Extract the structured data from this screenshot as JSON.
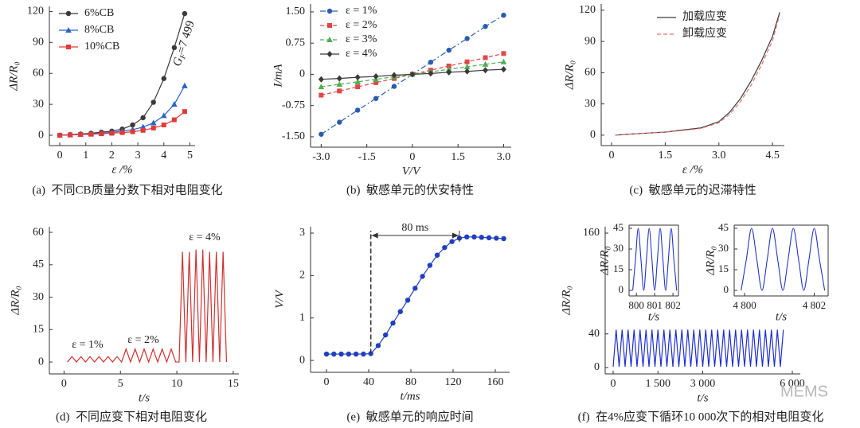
{
  "chart_data": [
    {
      "type": "line",
      "caption": "(a)  不同CB质量分数下相对电阻变化",
      "x_label": "ε /%",
      "y_label": "ΔR/R₀",
      "annotation": {
        "symbol": "G",
        "subscript": "F",
        "text": "=7 499"
      },
      "legend": "upper left",
      "x": [
        0,
        0.4,
        0.8,
        1.2,
        1.6,
        2.0,
        2.4,
        2.8,
        3.2,
        3.6,
        4.0,
        4.4,
        4.8
      ],
      "series": [
        {
          "name": "6%CB",
          "color": "#3a3a3a",
          "marker": "circle",
          "line_style": "solid",
          "values": [
            0,
            0.6,
            1.2,
            2,
            3,
            4,
            6,
            10,
            17,
            32,
            55,
            85,
            118
          ]
        },
        {
          "name": "8%CB",
          "color": "#2a62c8",
          "marker": "triangle",
          "line_style": "solid",
          "values": [
            0,
            0.4,
            0.9,
            1.4,
            2,
            2.8,
            4,
            5.5,
            8,
            12,
            19,
            30,
            48
          ]
        },
        {
          "name": "10%CB",
          "color": "#e03a3a",
          "marker": "square",
          "line_style": "solid",
          "values": [
            0,
            0.3,
            0.7,
            1,
            1.5,
            2,
            2.6,
            3.4,
            4.8,
            7,
            10,
            15,
            23
          ]
        }
      ],
      "xlim": [
        -0.4,
        5.2
      ],
      "ylim": [
        -10,
        125
      ],
      "xticks": [
        0,
        1,
        2,
        3,
        4,
        5
      ],
      "yticks": [
        0,
        30,
        60,
        90,
        120
      ]
    },
    {
      "type": "line",
      "caption": "(b)  敏感单元的伏安特性",
      "x_label": "V/V",
      "y_label": "I/mA",
      "legend": "upper left",
      "x": [
        -3,
        -2.4,
        -1.8,
        -1.2,
        -0.6,
        0,
        0.6,
        1.2,
        1.8,
        2.4,
        3
      ],
      "series": [
        {
          "name": "ε = 1%",
          "color": "#2a5cb0",
          "marker": "circle",
          "line_style": "dashdot",
          "values": [
            -1.44,
            -1.15,
            -0.86,
            -0.58,
            -0.29,
            0,
            0.29,
            0.58,
            0.86,
            1.15,
            1.42
          ]
        },
        {
          "name": "ε = 2%",
          "color": "#e04848",
          "marker": "square",
          "line_style": "dashed",
          "values": [
            -0.5,
            -0.4,
            -0.3,
            -0.2,
            -0.1,
            0,
            0.1,
            0.2,
            0.3,
            0.4,
            0.5
          ]
        },
        {
          "name": "ε = 3%",
          "color": "#4caf50",
          "marker": "triangle",
          "line_style": "dashed",
          "values": [
            -0.3,
            -0.24,
            -0.18,
            -0.12,
            -0.06,
            0,
            0.06,
            0.12,
            0.18,
            0.24,
            0.3
          ]
        },
        {
          "name": "ε = 4%",
          "color": "#3a3a3a",
          "marker": "diamond",
          "line_style": "solid",
          "values": [
            -0.12,
            -0.1,
            -0.07,
            -0.05,
            -0.02,
            0,
            0.02,
            0.05,
            0.07,
            0.1,
            0.12
          ]
        }
      ],
      "xlim": [
        -3.35,
        3.25
      ],
      "ylim": [
        -1.75,
        1.69
      ],
      "xticks": [
        {
          "value": -3,
          "label": "-3.0"
        },
        -1.5,
        0,
        1.5,
        {
          "value": 3,
          "label": "3.0"
        }
      ],
      "yticks": [
        {
          "value": -1.5,
          "label": "-1.50"
        },
        -0.75,
        0,
        0.75,
        {
          "value": 1.5,
          "label": "1.50"
        }
      ]
    },
    {
      "type": "line",
      "caption": "(c)  敏感单元的迟滞特性",
      "x_label": "ε /%",
      "y_label": "ΔR/R₀",
      "legend": "upper center",
      "x": [
        0.1,
        0.5,
        1,
        1.5,
        2,
        2.5,
        3,
        3.3,
        3.6,
        3.9,
        4.2,
        4.5,
        4.7
      ],
      "series": [
        {
          "name": "加载应变",
          "color": "#3a3a3a",
          "line_style": "solid",
          "values": [
            0,
            1,
            2,
            3,
            5,
            7,
            13,
            22,
            35,
            52,
            72,
            95,
            118
          ]
        },
        {
          "name": "卸载应变",
          "color": "#e07070",
          "line_style": "dashed",
          "values": [
            0,
            1,
            2,
            3,
            4.5,
            6.5,
            12,
            20,
            32,
            48,
            68,
            91,
            116
          ]
        }
      ],
      "xlim": [
        -0.29,
        4.83
      ],
      "ylim": [
        -10,
        126
      ],
      "xticks": [
        0,
        1.5,
        {
          "value": 3,
          "label": "3.0"
        },
        4.5
      ],
      "yticks": [
        0,
        30,
        60,
        90,
        120
      ]
    },
    {
      "type": "line",
      "caption": "(d)  不同应变下相对电阻变化",
      "x_label": "t/s",
      "y_label": "ΔR/R₀",
      "annotations": [
        "ε = 1%",
        "ε = 2%",
        "ε = 4%"
      ],
      "x": [
        0.3,
        0.7,
        1.1,
        1.5,
        1.9,
        2.3,
        2.7,
        3.1,
        3.5,
        3.9,
        4.3,
        4.7,
        5.1,
        5.5,
        5.9,
        6.3,
        6.7,
        7.1,
        7.5,
        7.9,
        8.3,
        8.7,
        9.1,
        9.5,
        9.9,
        10.2,
        10.5,
        10.8,
        11.1,
        11.4,
        11.7,
        12,
        12.3,
        12.6,
        12.9,
        13.2,
        13.5,
        13.8,
        14.1,
        14.4
      ],
      "series": [
        {
          "color": "#d03030",
          "line_style": "solid",
          "values": [
            0,
            2.5,
            0,
            2.5,
            0,
            2.5,
            0,
            2.5,
            0,
            2.5,
            0,
            2.5,
            0,
            6,
            0,
            6,
            0,
            6,
            0,
            6,
            0,
            6,
            0,
            6,
            0,
            0,
            51,
            0,
            51,
            0,
            52,
            0,
            52,
            0,
            51,
            0,
            51,
            0,
            51,
            0
          ]
        }
      ],
      "xlim": [
        -1.3,
        15.5
      ],
      "ylim": [
        -5.5,
        62.6
      ],
      "xticks": [
        0,
        5,
        10,
        15
      ],
      "yticks": [
        0,
        15,
        30,
        45,
        60
      ]
    },
    {
      "type": "line",
      "caption": "(e)  敏感单元的响应时间",
      "x_label": "t/ms",
      "y_label": "V/V",
      "annotation_text": "80 ms",
      "x": [
        0,
        7,
        14,
        21,
        28,
        35,
        42,
        49,
        56,
        63,
        70,
        77,
        84,
        91,
        98,
        105,
        112,
        119,
        126,
        133,
        140,
        147,
        154,
        161,
        168
      ],
      "series": [
        {
          "color": "#1f3fbf",
          "marker": "circle",
          "line_style": "solid",
          "values": [
            0.15,
            0.15,
            0.15,
            0.15,
            0.15,
            0.15,
            0.16,
            0.35,
            0.6,
            0.88,
            1.15,
            1.42,
            1.7,
            1.98,
            2.24,
            2.48,
            2.66,
            2.8,
            2.88,
            2.91,
            2.91,
            2.9,
            2.89,
            2.88,
            2.87
          ]
        }
      ],
      "xlim": [
        -15.1,
        173.6
      ],
      "ylim": [
        -0.28,
        3.15
      ],
      "xticks": [
        0,
        40,
        80,
        120,
        160
      ],
      "yticks": [
        0,
        1,
        2,
        3
      ]
    },
    {
      "type": "line",
      "caption": "(f)  在4%应变下循环10 000次下的相对电阻变化",
      "x_label": "t/s",
      "y_label": "ΔR/R₀",
      "watermark": "MEMS",
      "x": [
        0,
        100,
        200,
        300,
        400,
        500,
        600,
        700,
        800,
        900,
        1000,
        1100,
        1200,
        1300,
        1400,
        1500,
        1600,
        1700,
        1800,
        1900,
        2000,
        2100,
        2200,
        2300,
        2400,
        2500,
        2600,
        2700,
        2800,
        2900,
        3000,
        3100,
        3200,
        3300,
        3400,
        3500,
        3600,
        3700,
        3800,
        3900,
        4000,
        4100,
        4200,
        4300,
        4400,
        4500,
        4600,
        4700,
        4800,
        4900,
        5000,
        5100,
        5200,
        5300,
        5400,
        5500,
        5600,
        5700
      ],
      "series": [
        {
          "color": "#1f2fd0",
          "line_style": "solid",
          "values": [
            1,
            45,
            1,
            45,
            1,
            45,
            1,
            45,
            1,
            45,
            1,
            45,
            1,
            45,
            1,
            45,
            1,
            45,
            1,
            45,
            1,
            45,
            1,
            45,
            1,
            45,
            1,
            45,
            1,
            45,
            1,
            45,
            1,
            45,
            1,
            45,
            1,
            45,
            1,
            45,
            1,
            45,
            1,
            45,
            1,
            45,
            1,
            45,
            1,
            45,
            1,
            45,
            1,
            45,
            1,
            45,
            1,
            45
          ]
        }
      ],
      "xlim": [
        -267,
        6267
      ],
      "ylim": [
        -7.6,
        167.6
      ],
      "xticks": [
        0,
        {
          "value": 1500,
          "label": "1 500"
        },
        {
          "value": 3000,
          "label": "3 000"
        },
        {
          "value": 6000,
          "label": "6 000"
        }
      ],
      "yticks": [
        0,
        40,
        160
      ],
      "insets": [
        {
          "type": "line",
          "x_label": "t/s",
          "y_label": "ΔR/R₀",
          "x": [
            799.8,
            799.95,
            800.1,
            800.25,
            800.4,
            800.55,
            800.7,
            800.85,
            801,
            801.15,
            801.3,
            801.45,
            801.6,
            801.75,
            801.9,
            802.05,
            802.2
          ],
          "series": [
            {
              "color": "#2233cc",
              "line_style": "solid",
              "values": [
                0,
                22.5,
                45,
                22.5,
                0,
                22.5,
                45,
                22.5,
                0,
                22.5,
                45,
                22.5,
                0,
                22.5,
                45,
                22.5,
                0
              ]
            }
          ],
          "xlim": [
            799.6,
            802.3
          ],
          "ylim": [
            -4,
            47.3
          ],
          "xticks": [
            800,
            801,
            802
          ],
          "yticks": [
            0,
            15,
            30,
            45
          ]
        },
        {
          "type": "line",
          "x_label": "t/s",
          "y_label": "ΔR/R₀",
          "x": [
            4799.9,
            4800.05,
            4800.2,
            4800.35,
            4800.5,
            4800.65,
            4800.8,
            4800.95,
            4801.1,
            4801.25,
            4801.4,
            4801.55,
            4801.7,
            4801.85,
            4802,
            4802.15,
            4802.3
          ],
          "series": [
            {
              "color": "#2233cc",
              "line_style": "solid",
              "values": [
                0,
                22.5,
                45,
                22.5,
                0,
                22.5,
                45,
                22.5,
                0,
                22.5,
                45,
                22.5,
                0,
                22.5,
                45,
                22.5,
                0
              ]
            }
          ],
          "xlim": [
            4799.7,
            4802.4
          ],
          "ylim": [
            -4,
            47.3
          ],
          "xticks": [
            {
              "value": 4800,
              "label": "4 800"
            },
            {
              "value": 4802,
              "label": "4 802"
            }
          ],
          "yticks": [
            0,
            15,
            30,
            45
          ]
        }
      ]
    }
  ]
}
